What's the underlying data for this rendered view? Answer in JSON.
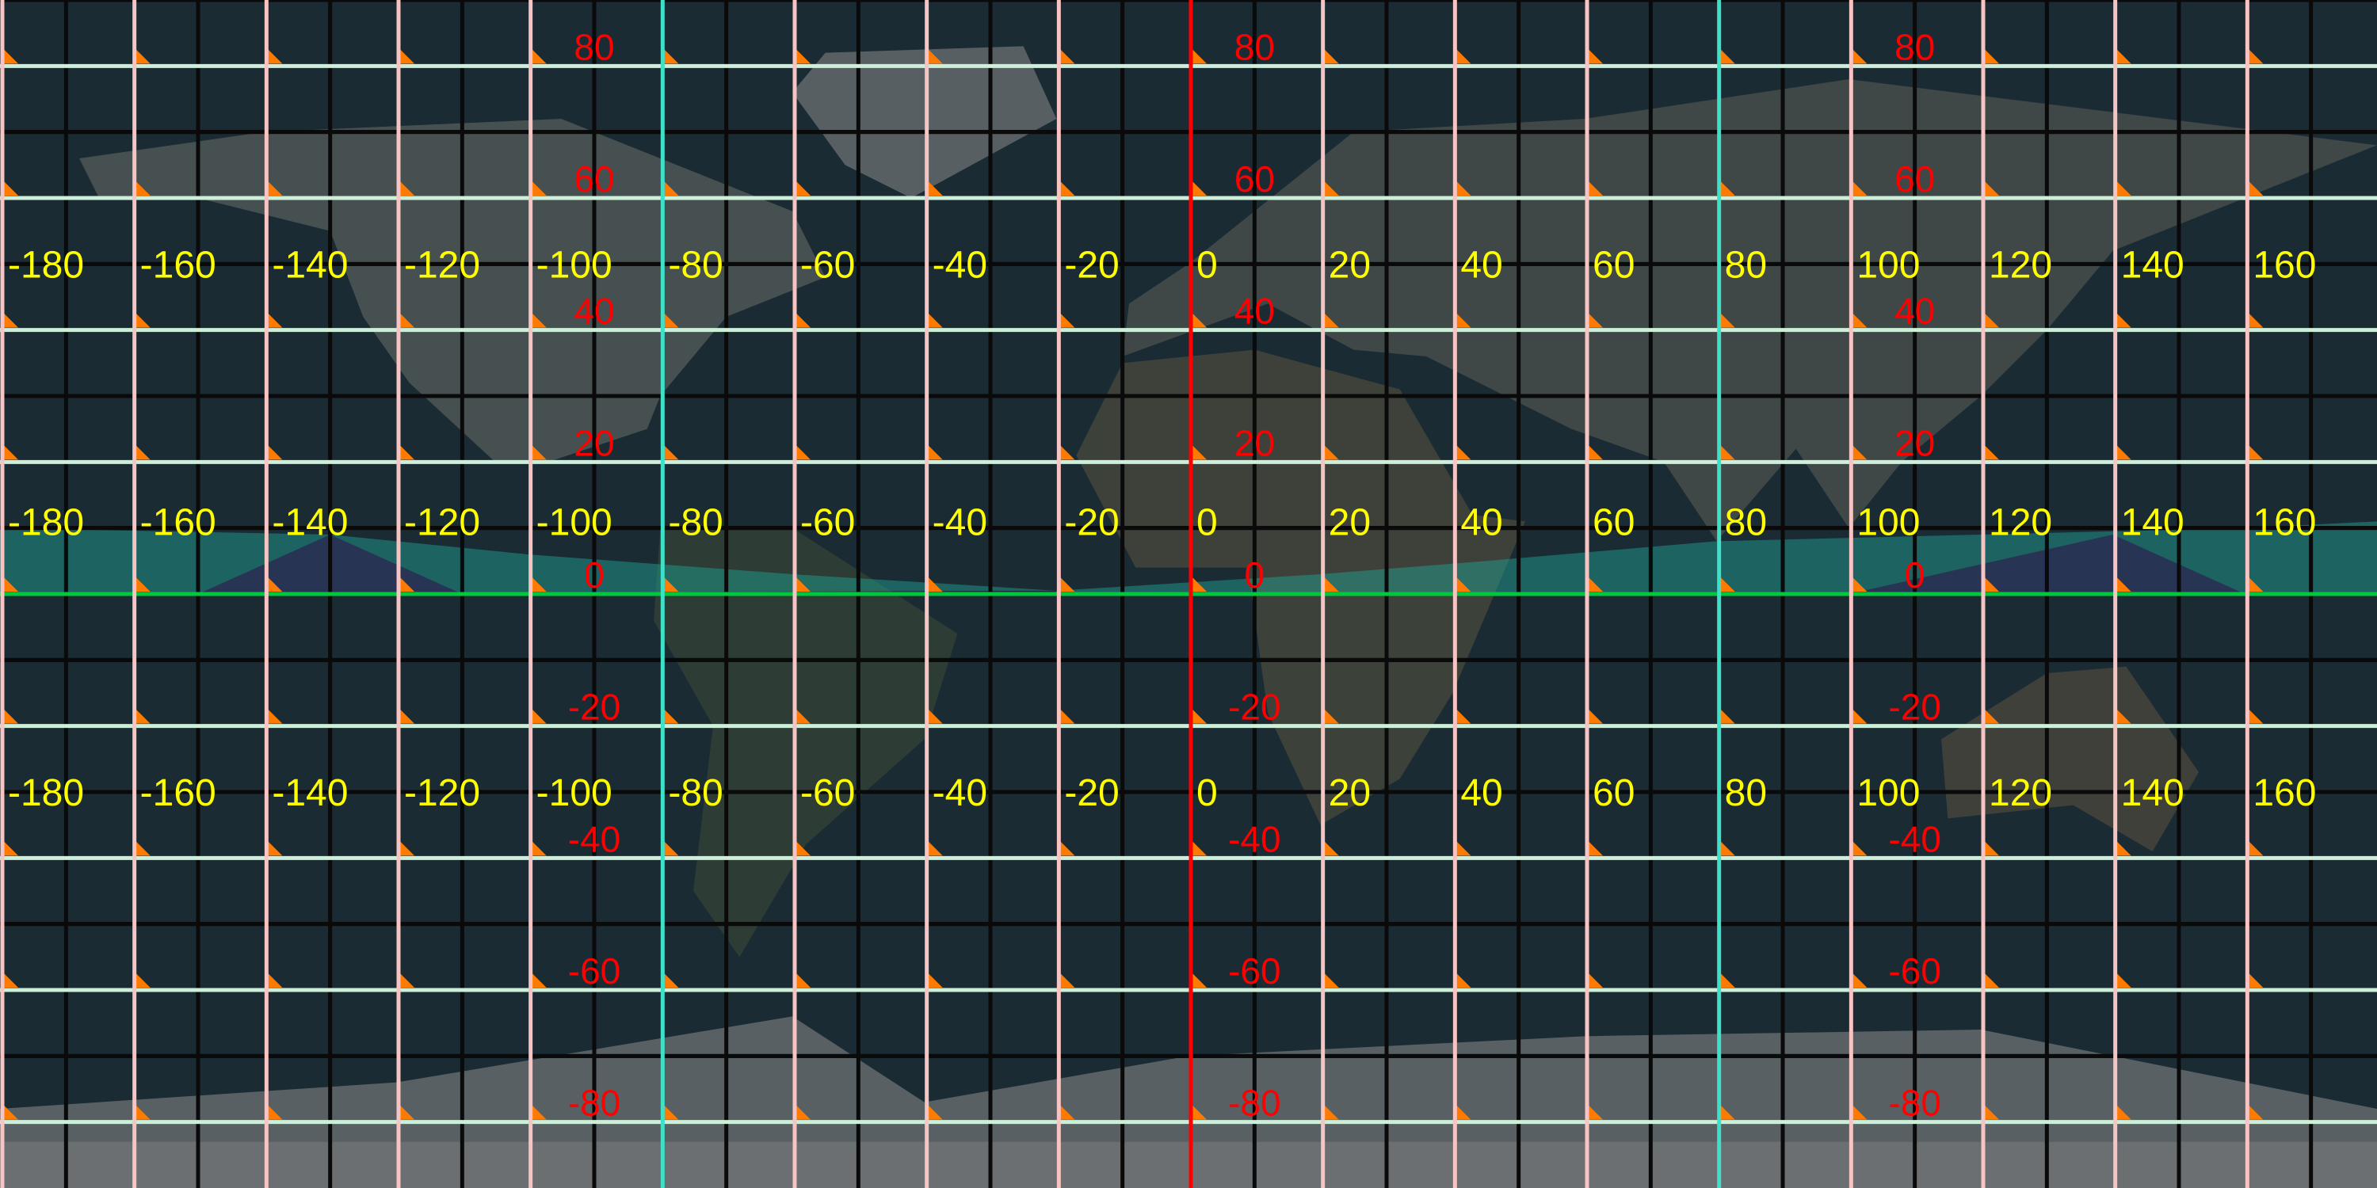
{
  "map": {
    "projection": "equirectangular",
    "lon_range": [
      -180,
      180
    ],
    "lat_range": [
      -90,
      90
    ],
    "grid_step_deg": 20,
    "tile_border_offset_deg": 10
  },
  "longitude_labels": {
    "values": [
      "-180",
      "-160",
      "-140",
      "-120",
      "-100",
      "-80",
      "-60",
      "-40",
      "-20",
      "0",
      "20",
      "40",
      "60",
      "80",
      "100",
      "120",
      "140",
      "160"
    ],
    "rows_at_lat": [
      50,
      11,
      -30
    ],
    "color": "#ffff00"
  },
  "latitude_labels": {
    "values": [
      "80",
      "60",
      "40",
      "20",
      "0",
      "-20",
      "-40",
      "-60",
      "-80"
    ],
    "columns_at_lon": [
      -90,
      10,
      110
    ],
    "color": "#ff0000"
  },
  "colors": {
    "meridian_line": "#f7c4c4",
    "parallel_line": "#cdeed8",
    "prime_meridian": "#ff0000",
    "equator": "#00c83c",
    "highlight_meridians": "#3ee0c8",
    "tile_border": "#0a0a0a",
    "corner_marker": "#ff7a00",
    "swath": "#1fa89a"
  },
  "highlight_meridians_lon": [
    -80,
    80
  ],
  "corner_marker_icon": "orange-triangle"
}
